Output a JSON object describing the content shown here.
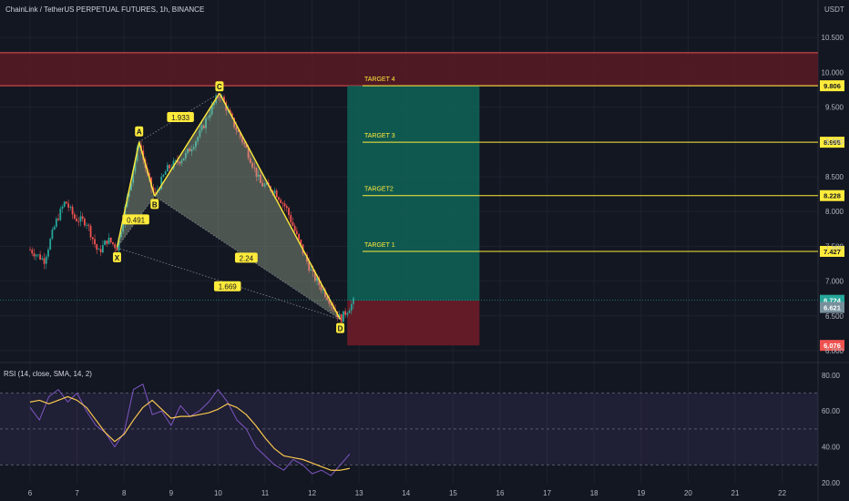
{
  "header": {
    "title": "ChainLink / TetherUS PERPETUAL FUTURES, 1h, BINANCE",
    "currency": "USDT"
  },
  "colors": {
    "background": "#131722",
    "up": "#26a69a",
    "down": "#ef5350",
    "pattern": "#ffeb3b",
    "profit_zone": "#0f5f55",
    "loss_zone": "#6b1c28",
    "resistance_zone": "#5b1a24",
    "rsi_line": "#7e57c2",
    "rsi_ma": "#f9c74f"
  },
  "chart_data": [
    {
      "type": "candlestick",
      "title": "ChainLink / TetherUS PERPETUAL FUTURES, 1h, BINANCE",
      "ylabel": "USDT",
      "ylim": [
        6.0,
        10.75
      ],
      "x_ticks": [
        "6",
        "7",
        "8",
        "9",
        "10",
        "11",
        "12",
        "13",
        "14",
        "15",
        "16",
        "17",
        "18",
        "19",
        "20",
        "21",
        "22"
      ],
      "y_ticks": [
        "10.500",
        "10.000",
        "9.500",
        "9.000",
        "8.500",
        "8.000",
        "7.500",
        "7.000",
        "6.500",
        "6.000"
      ],
      "harmonic_pattern": {
        "points": [
          {
            "label": "X",
            "x": 7.85,
            "y": 7.48
          },
          {
            "label": "A",
            "x": 8.32,
            "y": 9.0
          },
          {
            "label": "B",
            "x": 8.65,
            "y": 8.22
          },
          {
            "label": "C",
            "x": 10.03,
            "y": 9.7
          },
          {
            "label": "D",
            "x": 12.6,
            "y": 6.45
          }
        ],
        "ratios": [
          {
            "label": "0.491",
            "x": 8.25,
            "y": 7.88
          },
          {
            "label": "1.933",
            "x": 9.2,
            "y": 9.35
          },
          {
            "label": "2.24",
            "x": 10.6,
            "y": 7.33
          },
          {
            "label": "1.669",
            "x": 10.2,
            "y": 6.92
          }
        ]
      },
      "position": {
        "profit_zone": [
          6.72,
          9.806
        ],
        "stop_zone": [
          6.076,
          6.72
        ],
        "x_range": [
          13.0,
          15.6
        ]
      },
      "resistance_zone": {
        "range": [
          9.806,
          10.28
        ]
      },
      "targets": [
        {
          "label": "TARGET 4",
          "value": "9.806",
          "y": 9.806
        },
        {
          "label": "TARGET 3",
          "value": "8.995",
          "y": 8.995
        },
        {
          "label": "TARGET2",
          "value": "8.228",
          "y": 8.228
        },
        {
          "label": "TARGET 1",
          "value": "7.427",
          "y": 7.427
        }
      ],
      "price_tags": [
        {
          "value": "6.724",
          "y": 6.724,
          "color": "#26a69a"
        },
        {
          "value": "6.621",
          "y": 6.621,
          "color": "#78909c"
        },
        {
          "value": "6.076",
          "y": 6.076,
          "color": "#ef5350"
        }
      ],
      "last_price": 6.724
    },
    {
      "type": "line",
      "title": "RSI (14, close, SMA, 14, 2)",
      "ylim": [
        20,
        85
      ],
      "y_ticks": [
        "80.00",
        "60.00",
        "40.00",
        "20.00"
      ],
      "bands": [
        30,
        50,
        70
      ],
      "series": [
        {
          "name": "RSI",
          "x": [
            6.0,
            6.2,
            6.4,
            6.6,
            6.8,
            7.0,
            7.2,
            7.4,
            7.6,
            7.8,
            8.0,
            8.2,
            8.4,
            8.6,
            8.8,
            9.0,
            9.2,
            9.4,
            9.6,
            9.8,
            10.0,
            10.2,
            10.4,
            10.6,
            10.8,
            11.0,
            11.2,
            11.4,
            11.6,
            11.8,
            12.0,
            12.2,
            12.4,
            12.6,
            12.8
          ],
          "values": [
            62,
            55,
            68,
            72,
            65,
            70,
            60,
            52,
            48,
            40,
            48,
            72,
            75,
            58,
            60,
            52,
            63,
            57,
            60,
            65,
            72,
            65,
            55,
            50,
            40,
            35,
            30,
            27,
            33,
            30,
            25,
            27,
            24,
            30,
            36
          ]
        },
        {
          "name": "RSI-based MA",
          "x": [
            6.0,
            6.2,
            6.4,
            6.6,
            6.8,
            7.0,
            7.2,
            7.4,
            7.6,
            7.8,
            8.0,
            8.2,
            8.4,
            8.6,
            8.8,
            9.0,
            9.2,
            9.4,
            9.6,
            9.8,
            10.0,
            10.2,
            10.4,
            10.6,
            10.8,
            11.0,
            11.2,
            11.4,
            11.6,
            11.8,
            12.0,
            12.2,
            12.4,
            12.6,
            12.8
          ],
          "values": [
            65,
            66,
            64,
            66,
            68,
            66,
            62,
            55,
            48,
            43,
            47,
            55,
            62,
            66,
            61,
            56,
            57,
            57,
            58,
            59,
            61,
            64,
            62,
            58,
            52,
            45,
            39,
            35,
            34,
            33,
            31,
            29,
            27,
            27,
            28
          ]
        }
      ]
    }
  ]
}
